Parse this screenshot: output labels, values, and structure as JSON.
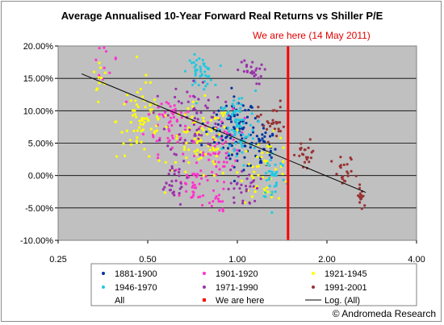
{
  "chart_data": {
    "type": "scatter",
    "title": "Average Annualised 10-Year Forward Real Returns vs Shiller P/E",
    "annotation": "We are here (14 May 2011)",
    "credit": "© Andromeda Research",
    "x_scale": "log",
    "xlim": [
      0.25,
      4.0
    ],
    "ylim": [
      -0.1,
      0.2
    ],
    "x_ticks": [
      {
        "value": 0.25,
        "label": "0.25"
      },
      {
        "value": 0.5,
        "label": "0.50"
      },
      {
        "value": 1.0,
        "label": "1.00"
      },
      {
        "value": 2.0,
        "label": "2.00"
      },
      {
        "value": 4.0,
        "label": "4.00"
      }
    ],
    "y_ticks": [
      {
        "value": 0.2,
        "label": "20.00%"
      },
      {
        "value": 0.15,
        "label": "15.00%"
      },
      {
        "value": 0.1,
        "label": "10.00%"
      },
      {
        "value": 0.05,
        "label": "5.00%"
      },
      {
        "value": 0.0,
        "label": "0.00%"
      },
      {
        "value": -0.05,
        "label": "-5.00%"
      },
      {
        "value": -0.1,
        "label": "-10.00%"
      }
    ],
    "grid": true,
    "plot_background": "#c0c0c0",
    "legend": [
      {
        "label": "1881-1900",
        "color": "#0033a0",
        "kind": "dot"
      },
      {
        "label": "1901-1920",
        "color": "#ff33cc",
        "kind": "dot"
      },
      {
        "label": "1921-1945",
        "color": "#ffff00",
        "kind": "dot"
      },
      {
        "label": "1946-1970",
        "color": "#22c8e0",
        "kind": "dot"
      },
      {
        "label": "1971-1990",
        "color": "#9933aa",
        "kind": "dot"
      },
      {
        "label": "1991-2001",
        "color": "#993333",
        "kind": "dot"
      },
      {
        "label": "All",
        "color": "",
        "kind": "none"
      },
      {
        "label": "We are here",
        "color": "#ff0000",
        "kind": "square"
      },
      {
        "label": "Log. (All)",
        "color": "#000000",
        "kind": "line"
      }
    ],
    "marker_x": 1.48,
    "marker_color": "#ff0000",
    "trendline": {
      "color": "#000000",
      "points": [
        [
          0.3,
          0.157
        ],
        [
          2.7,
          -0.026
        ]
      ]
    },
    "series": [
      {
        "name": "1881-1900",
        "color": "#0033a0",
        "clusters": [
          {
            "cx": 1.0,
            "cy": 0.065,
            "sx": 0.07,
            "sy": 0.028,
            "n": 80
          },
          {
            "cx": 1.22,
            "cy": 0.045,
            "sx": 0.05,
            "sy": 0.02,
            "n": 35
          },
          {
            "cx": 0.82,
            "cy": 0.075,
            "sx": 0.05,
            "sy": 0.02,
            "n": 15
          }
        ]
      },
      {
        "name": "1901-1920",
        "color": "#ff33cc",
        "clusters": [
          {
            "cx": 0.6,
            "cy": 0.085,
            "sx": 0.1,
            "sy": 0.025,
            "n": 60
          },
          {
            "cx": 0.72,
            "cy": -0.015,
            "sx": 0.08,
            "sy": 0.02,
            "n": 45
          },
          {
            "cx": 0.9,
            "cy": 0.045,
            "sx": 0.08,
            "sy": 0.025,
            "n": 50
          },
          {
            "cx": 0.36,
            "cy": 0.18,
            "sx": 0.05,
            "sy": 0.012,
            "n": 12
          },
          {
            "cx": 0.86,
            "cy": -0.04,
            "sx": 0.04,
            "sy": 0.008,
            "n": 10
          }
        ]
      },
      {
        "name": "1921-1945",
        "color": "#ffff00",
        "clusters": [
          {
            "cx": 0.48,
            "cy": 0.085,
            "sx": 0.1,
            "sy": 0.03,
            "n": 70
          },
          {
            "cx": 0.75,
            "cy": 0.05,
            "sx": 0.12,
            "sy": 0.03,
            "n": 80
          },
          {
            "cx": 1.25,
            "cy": 0.01,
            "sx": 0.1,
            "sy": 0.025,
            "n": 50
          },
          {
            "cx": 0.34,
            "cy": 0.15,
            "sx": 0.04,
            "sy": 0.015,
            "n": 12
          }
        ]
      },
      {
        "name": "1946-1970",
        "color": "#22c8e0",
        "clusters": [
          {
            "cx": 0.75,
            "cy": 0.16,
            "sx": 0.05,
            "sy": 0.012,
            "n": 45
          },
          {
            "cx": 1.0,
            "cy": 0.07,
            "sx": 0.07,
            "sy": 0.03,
            "n": 75
          },
          {
            "cx": 1.32,
            "cy": 0.0,
            "sx": 0.05,
            "sy": 0.02,
            "n": 35
          }
        ]
      },
      {
        "name": "1971-1990",
        "color": "#9933aa",
        "clusters": [
          {
            "cx": 0.72,
            "cy": 0.09,
            "sx": 0.11,
            "sy": 0.03,
            "n": 60
          },
          {
            "cx": 0.6,
            "cy": -0.01,
            "sx": 0.06,
            "sy": 0.018,
            "n": 30
          },
          {
            "cx": 1.1,
            "cy": 0.16,
            "sx": 0.05,
            "sy": 0.01,
            "n": 25
          },
          {
            "cx": 1.05,
            "cy": -0.02,
            "sx": 0.06,
            "sy": 0.015,
            "n": 30
          }
        ]
      },
      {
        "name": "1991-2001",
        "color": "#993333",
        "clusters": [
          {
            "cx": 1.3,
            "cy": 0.085,
            "sx": 0.05,
            "sy": 0.015,
            "n": 30
          },
          {
            "cx": 1.7,
            "cy": 0.03,
            "sx": 0.04,
            "sy": 0.012,
            "n": 22
          },
          {
            "cx": 2.3,
            "cy": 0.0,
            "sx": 0.05,
            "sy": 0.015,
            "n": 22
          },
          {
            "cx": 2.62,
            "cy": -0.035,
            "sx": 0.02,
            "sy": 0.01,
            "n": 14
          }
        ]
      }
    ]
  }
}
